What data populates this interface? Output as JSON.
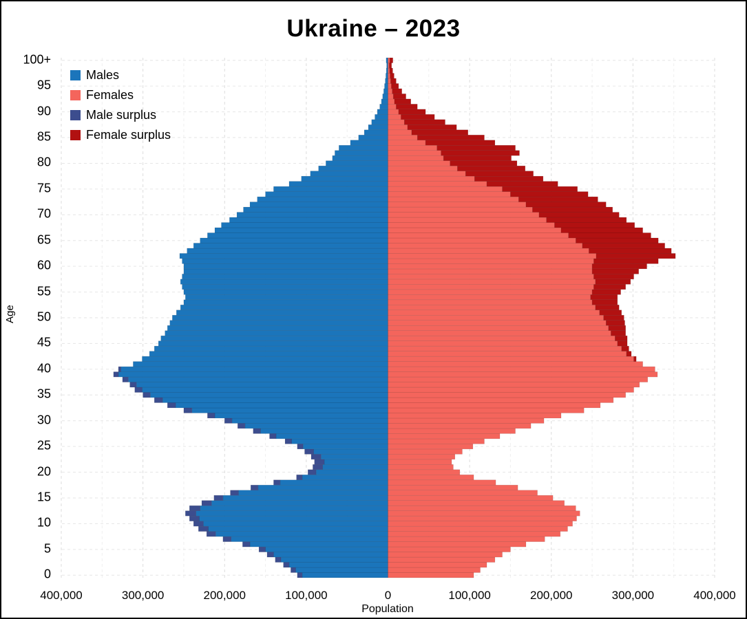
{
  "chart_data": {
    "type": "bar",
    "subtype": "population-pyramid",
    "title": "Ukraine – 2023",
    "xlabel": "Population",
    "ylabel": "Age",
    "grid": true,
    "legend_position": "top-left",
    "xlim": [
      -400000,
      400000
    ],
    "age_min": 0,
    "age_max": 100,
    "x_tick_values": [
      -400000,
      -300000,
      -200000,
      -100000,
      0,
      100000,
      200000,
      300000,
      400000
    ],
    "x_tick_labels": [
      "400,000",
      "300,000",
      "200,000",
      "100,000",
      "0",
      "100,000",
      "200,000",
      "300,000",
      "400,000"
    ],
    "y_tick_ages": [
      0,
      5,
      10,
      15,
      20,
      25,
      30,
      35,
      40,
      45,
      50,
      55,
      60,
      65,
      70,
      75,
      80,
      85,
      90,
      95,
      100
    ],
    "y_tick_labels": [
      "0",
      "5",
      "10",
      "15",
      "20",
      "25",
      "30",
      "35",
      "40",
      "45",
      "50",
      "55",
      "60",
      "65",
      "70",
      "75",
      "80",
      "85",
      "90",
      "95",
      "100+"
    ],
    "colors": {
      "males": "#1b75bb",
      "females": "#f4655c",
      "male_surplus": "#3c4d8e",
      "female_surplus": "#b11111"
    },
    "legend": [
      {
        "key": "males",
        "label": "Males",
        "color_key": "males"
      },
      {
        "key": "females",
        "label": "Females",
        "color_key": "females"
      },
      {
        "key": "male-surplus",
        "label": "Male surplus",
        "color_key": "male_surplus"
      },
      {
        "key": "female-surplus",
        "label": "Female surplus",
        "color_key": "female_surplus"
      }
    ],
    "series": [
      {
        "name": "Males",
        "values": [
          111000,
          119000,
          128000,
          138000,
          148000,
          158000,
          178000,
          202000,
          222000,
          232000,
          238000,
          243000,
          248000,
          243000,
          228000,
          213000,
          193000,
          168000,
          140000,
          112000,
          98000,
          92000,
          90000,
          94000,
          102000,
          111000,
          126000,
          145000,
          165000,
          184000,
          200000,
          221000,
          250000,
          270000,
          286000,
          300000,
          310000,
          316000,
          325000,
          336000,
          330000,
          312000,
          301000,
          292000,
          286000,
          281000,
          278000,
          273000,
          270000,
          267000,
          264000,
          259000,
          254000,
          250000,
          248000,
          250000,
          252000,
          254000,
          252000,
          250000,
          250000,
          252000,
          255000,
          246000,
          238000,
          230000,
          221000,
          212000,
          204000,
          194000,
          185000,
          177000,
          169000,
          160000,
          150000,
          140000,
          121000,
          106000,
          95000,
          85000,
          76000,
          68000,
          65000,
          60000,
          46000,
          36000,
          29000,
          24000,
          20000,
          16000,
          13000,
          10000,
          8000,
          6500,
          5200,
          4200,
          3300,
          2600,
          2000,
          1600,
          2200
        ]
      },
      {
        "name": "Females",
        "values": [
          105000,
          113000,
          121000,
          131000,
          140000,
          150000,
          169000,
          192000,
          211000,
          220000,
          226000,
          231000,
          235000,
          230000,
          216000,
          202000,
          183000,
          159000,
          132000,
          105000,
          88000,
          80000,
          78000,
          82000,
          91000,
          104000,
          118000,
          137000,
          156000,
          175000,
          191000,
          212000,
          240000,
          260000,
          276000,
          291000,
          301000,
          308000,
          318000,
          330000,
          327000,
          312000,
          304000,
          298000,
          295000,
          293000,
          293000,
          291000,
          291000,
          290000,
          289000,
          286000,
          283000,
          281000,
          281000,
          285000,
          291000,
          297000,
          301000,
          307000,
          317000,
          331000,
          352000,
          347000,
          339000,
          331000,
          322000,
          312000,
          302000,
          292000,
          283000,
          275000,
          267000,
          257000,
          245000,
          232000,
          208000,
          190000,
          178000,
          168000,
          158000,
          151000,
          161000,
          156000,
          131000,
          118000,
          98000,
          84000,
          70000,
          57000,
          46000,
          36000,
          28000,
          22000,
          17000,
          13000,
          10000,
          7500,
          5800,
          4400,
          6000
        ]
      }
    ]
  }
}
